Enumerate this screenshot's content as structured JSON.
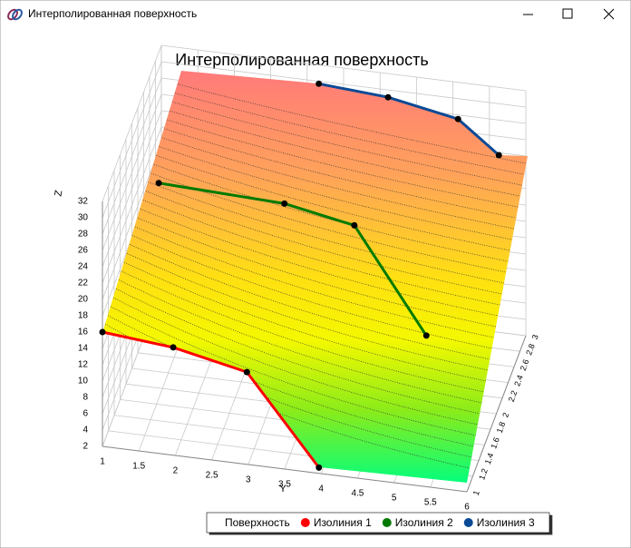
{
  "window": {
    "title": "Интерполированная поверхность"
  },
  "chart_data": {
    "type": "surface3d",
    "title": "Интерполированная поверхность",
    "x_label": "Y",
    "z_label": "Z",
    "xlim": [
      1,
      6
    ],
    "xticks": [
      1,
      1.5,
      2,
      2.5,
      3,
      3.5,
      4,
      4.5,
      5,
      5.5,
      6
    ],
    "ylim": [
      1,
      3
    ],
    "yticks": [
      1,
      1.2,
      1.4,
      1.6,
      1.8,
      2,
      2.2,
      2.4,
      2.6,
      2.8,
      3
    ],
    "zlim": [
      2,
      32
    ],
    "zticks": [
      2,
      4,
      6,
      8,
      10,
      12,
      14,
      16,
      18,
      20,
      22,
      24,
      26,
      28,
      30,
      32
    ],
    "grid": true,
    "legend": "bottom-right",
    "series": [
      {
        "name": "Поверхность"
      },
      {
        "name": "Изолиния 1",
        "color": "#ff0000",
        "x": [
          1,
          1.89,
          2.82,
          3.97
        ],
        "y": [
          1,
          1.2,
          1.4,
          1
        ],
        "z": [
          16,
          13.2,
          9.3,
          2.7
        ]
      },
      {
        "name": "Изолиния 2",
        "color": "#007a00",
        "x": [
          1,
          2.85,
          3.89,
          5.12
        ],
        "y": [
          2.91,
          2.6,
          2.4,
          1.8
        ],
        "z": [
          16,
          18.5,
          18.9,
          12.5
        ]
      },
      {
        "name": "Изолиния 3",
        "color": "#0a4a96",
        "x": [
          3.16,
          4.11,
          5.07,
          5.63
        ],
        "y": [
          3,
          3,
          3,
          3
        ],
        "z": [
          29.7,
          29.1,
          27.5,
          23.7
        ]
      }
    ]
  }
}
